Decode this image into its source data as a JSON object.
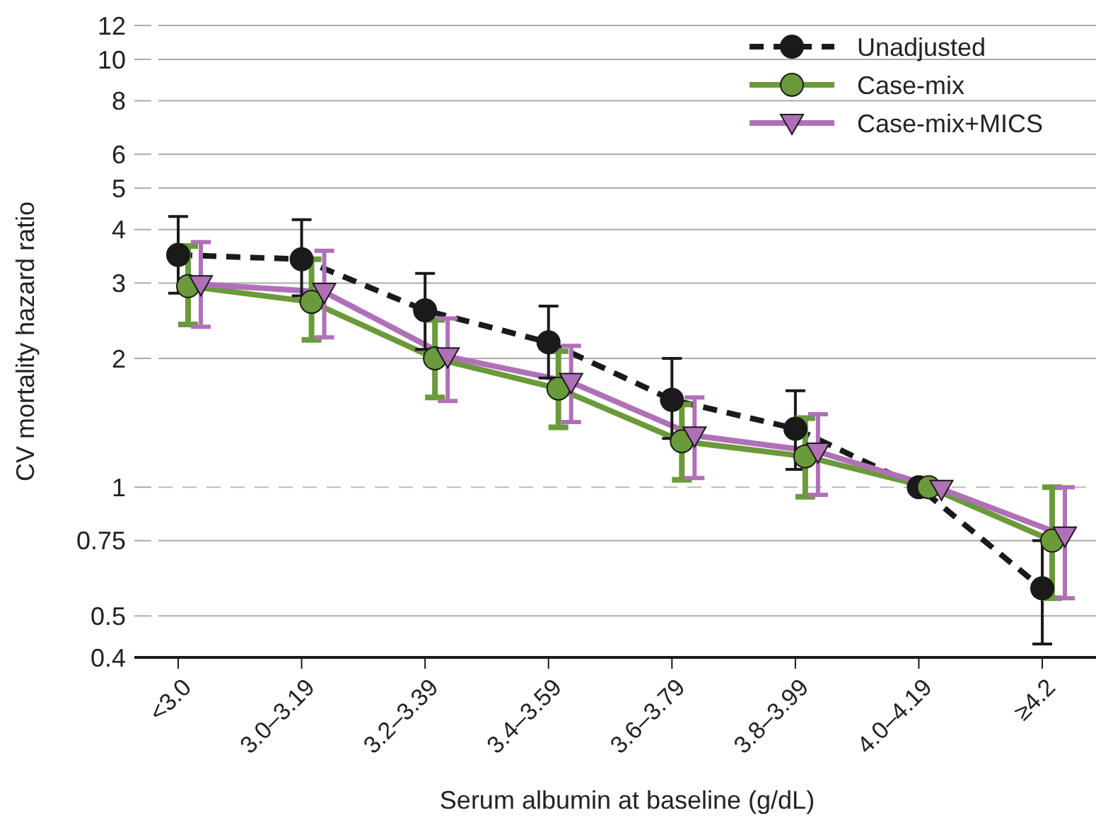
{
  "chart_data": {
    "type": "line",
    "xlabel": "Serum albumin at baseline (g/dL)",
    "ylabel": "CV mortality hazard ratio",
    "categories": [
      "<3.0",
      "3.0–3.19",
      "3.2–3.39",
      "3.4–3.59",
      "3.6–3.79",
      "3.8–3.99",
      "4.0–4.19",
      "≥4.2"
    ],
    "log": "y",
    "ylim": [
      0.4,
      12
    ],
    "yticks": [
      0.4,
      0.5,
      0.75,
      1,
      2,
      3,
      4,
      5,
      6,
      8,
      10,
      12
    ],
    "grid": "y",
    "legend": "top right",
    "ref_lines": [
      {
        "axis": "y",
        "value": 1,
        "color": "#bbbbbb",
        "line_style": "dashed"
      }
    ],
    "series": [
      {
        "name": "Unadjusted",
        "color": "#1a1a1a",
        "marker": "circle",
        "line_style": "dashed",
        "values": [
          3.49,
          3.41,
          2.59,
          2.18,
          1.6,
          1.37,
          1.0,
          0.58
        ],
        "errors": [
          [
            2.84,
            4.29
          ],
          [
            2.8,
            4.22
          ],
          [
            2.1,
            3.16
          ],
          [
            1.8,
            2.65
          ],
          [
            1.3,
            2.0
          ],
          [
            1.1,
            1.68
          ],
          null,
          [
            0.43,
            0.75
          ]
        ]
      },
      {
        "name": "Case-mix",
        "color": "#6a9a3a",
        "marker": "circle",
        "line_style": "solid",
        "values": [
          2.95,
          2.71,
          2.0,
          1.7,
          1.28,
          1.18,
          1.0,
          0.75
        ],
        "errors": [
          [
            2.4,
            3.66
          ],
          [
            2.21,
            3.41
          ],
          [
            1.62,
            2.46
          ],
          [
            1.38,
            2.08
          ],
          [
            1.04,
            1.56
          ],
          [
            0.95,
            1.45
          ],
          null,
          [
            0.55,
            1.0
          ]
        ]
      },
      {
        "name": "Case-mix+MICS",
        "color": "#b070b8",
        "marker": "triangle",
        "line_style": "solid",
        "values": [
          2.98,
          2.86,
          2.02,
          1.76,
          1.32,
          1.21,
          0.99,
          0.77
        ],
        "errors": [
          [
            2.37,
            3.74
          ],
          [
            2.24,
            3.57
          ],
          [
            1.59,
            2.48
          ],
          [
            1.42,
            2.14
          ],
          [
            1.05,
            1.62
          ],
          [
            0.96,
            1.48
          ],
          null,
          [
            0.55,
            1.0
          ]
        ]
      }
    ]
  }
}
